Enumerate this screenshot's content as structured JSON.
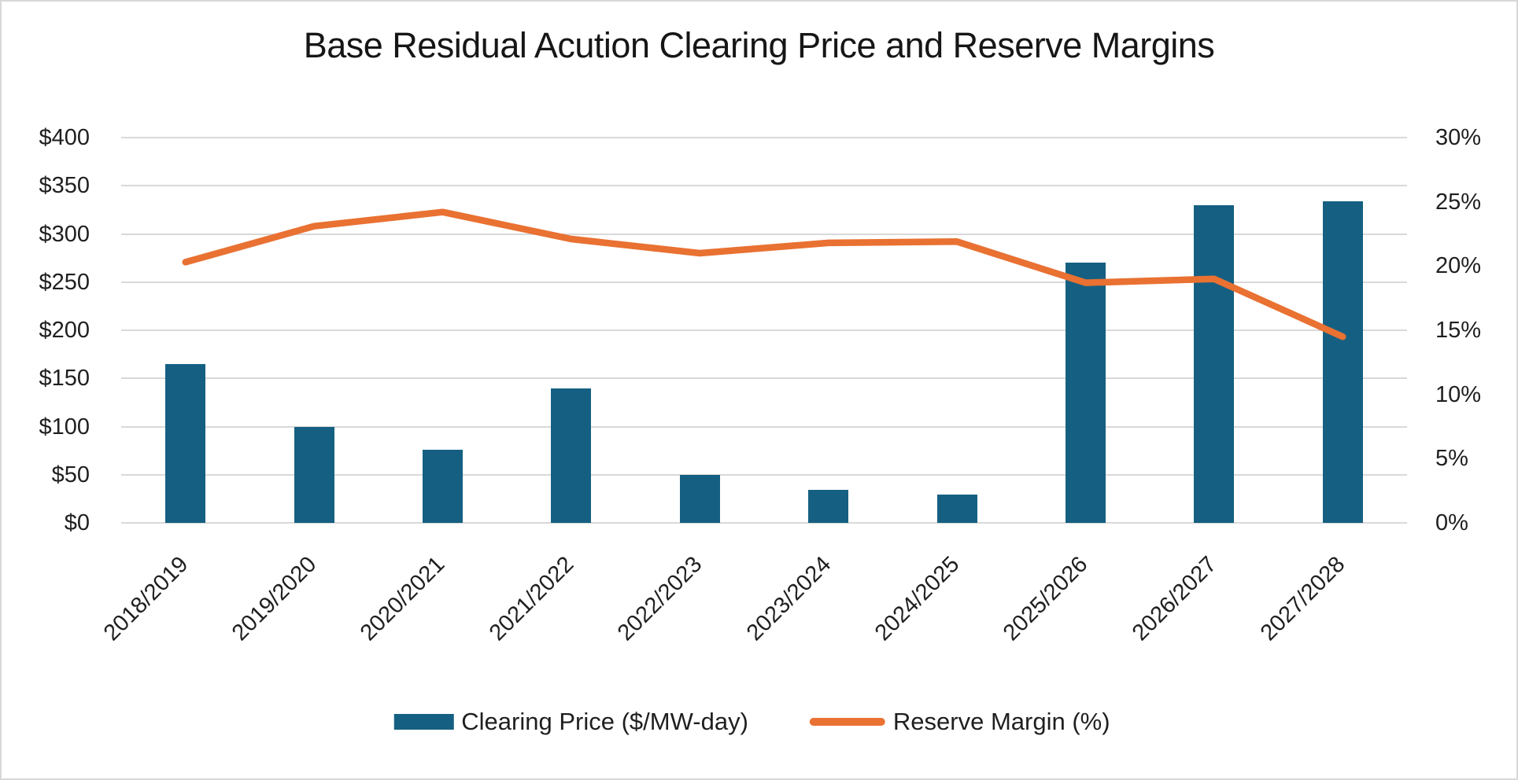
{
  "window": {
    "background": "#ffffff",
    "border_color": "#d8d8d8"
  },
  "chart_data": {
    "type": "combo",
    "title": "Base Residual Acution Clearing Price and Reserve Margins",
    "categories": [
      "2018/2019",
      "2019/2020",
      "2020/2021",
      "2021/2022",
      "2022/2023",
      "2023/2024",
      "2024/2025",
      "2025/2026",
      "2026/2027",
      "2027/2028"
    ],
    "series": [
      {
        "name": "Clearing Price ($/MW-day)",
        "type": "bar",
        "axis": "left",
        "color": "#156082",
        "values": [
          165,
          100,
          76,
          140,
          50,
          34,
          29,
          270,
          330,
          334
        ]
      },
      {
        "name": "Reserve Margin (%)",
        "type": "line",
        "axis": "right",
        "color": "#E97132",
        "values": [
          20.3,
          23.1,
          24.2,
          22.1,
          21.0,
          21.8,
          21.9,
          18.7,
          19.0,
          14.5
        ]
      }
    ],
    "left_axis": {
      "min": 0,
      "max": 400,
      "tick_values": [
        0,
        50,
        100,
        150,
        200,
        250,
        300,
        350,
        400
      ],
      "tick_labels": [
        "$0",
        "$50",
        "$100",
        "$150",
        "$200",
        "$250",
        "$300",
        "$350",
        "$400"
      ]
    },
    "right_axis": {
      "min": 0,
      "max": 30,
      "tick_values": [
        0,
        5,
        10,
        15,
        20,
        25,
        30
      ],
      "tick_labels": [
        "0%",
        "5%",
        "10%",
        "15%",
        "20%",
        "25%",
        "30%"
      ]
    },
    "grid": true,
    "gridline_color": "#d9d9d9",
    "legend_position": "bottom"
  }
}
